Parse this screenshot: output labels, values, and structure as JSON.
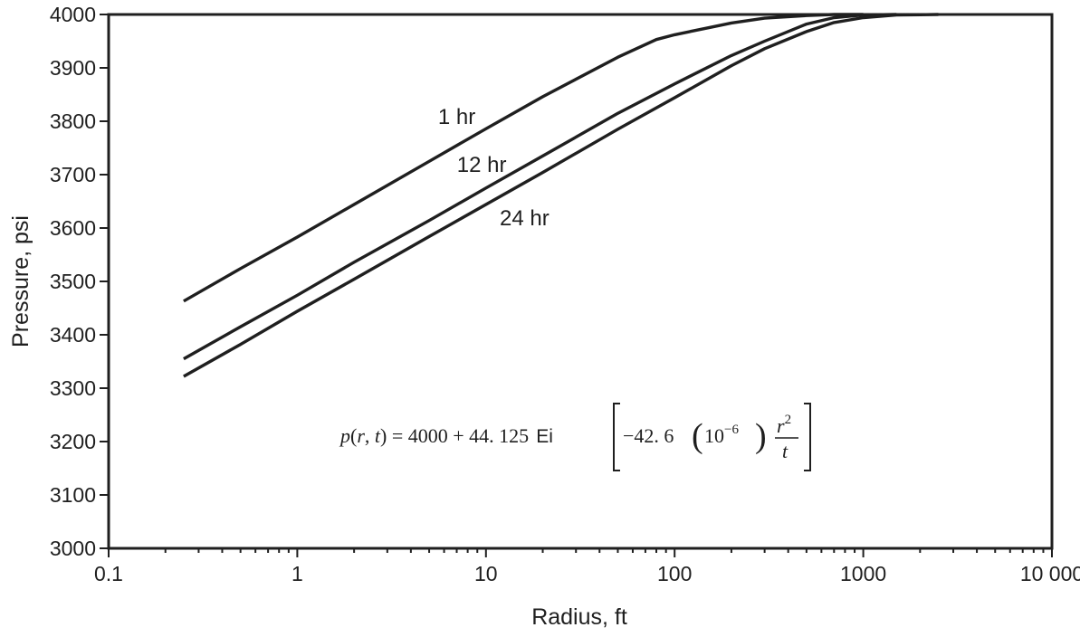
{
  "chart_data": {
    "type": "line",
    "title": "",
    "xlabel": "Radius, ft",
    "ylabel": "Pressure, psi",
    "xscale": "log",
    "xlim": [
      0.1,
      10000
    ],
    "ylim": [
      3000,
      4000
    ],
    "grid": false,
    "legend": "none",
    "x_tick_labels": [
      "0.1",
      "1",
      "10",
      "100",
      "1000",
      "10 000"
    ],
    "y_tick_labels": [
      "3000",
      "3100",
      "3200",
      "3300",
      "3400",
      "3500",
      "3600",
      "3700",
      "3800",
      "3900",
      "4000"
    ],
    "series": [
      {
        "name": "1 hr",
        "x": [
          0.25,
          0.5,
          1,
          2,
          5,
          10,
          20,
          50,
          80,
          100,
          150,
          200,
          300,
          500,
          700,
          1000
        ],
        "y": [
          3463,
          3524,
          3583,
          3644,
          3725,
          3786,
          3846,
          3920,
          3953,
          3962,
          3975,
          3984,
          3993,
          3998,
          4000,
          4000
        ]
      },
      {
        "name": "12 hr",
        "x": [
          0.25,
          0.5,
          1,
          2,
          5,
          10,
          20,
          50,
          100,
          200,
          300,
          500,
          700,
          1000,
          1500
        ],
        "y": [
          3355,
          3415,
          3474,
          3536,
          3614,
          3675,
          3735,
          3815,
          3870,
          3923,
          3950,
          3982,
          3994,
          3999,
          4000
        ]
      },
      {
        "name": "24 hr",
        "x": [
          0.25,
          0.5,
          1,
          2,
          5,
          10,
          20,
          50,
          100,
          200,
          300,
          500,
          700,
          1000,
          1500,
          2500
        ],
        "y": [
          3322,
          3382,
          3444,
          3504,
          3584,
          3644,
          3704,
          3785,
          3844,
          3904,
          3936,
          3968,
          3985,
          3994,
          3999,
          4000
        ]
      }
    ],
    "annotations": [
      {
        "text": "1 hr",
        "x": 7,
        "y": 3795
      },
      {
        "text": "12 hr",
        "x": 9.5,
        "y": 3705
      },
      {
        "text": "24 hr",
        "x": 16,
        "y": 3605
      }
    ],
    "equation": {
      "lhs_p": "p",
      "lhs_open": "(",
      "lhs_r": "r",
      "lhs_comma": ", ",
      "lhs_t": "t",
      "lhs_close": ")",
      "equals": " = ",
      "rhs": "4000 + 44. 125",
      "func": "Ei",
      "coef": "−42. 6",
      "power_base": "10",
      "power_exp": "−6",
      "frac_num": "r",
      "frac_num_exp": "2",
      "frac_den": "t"
    }
  }
}
